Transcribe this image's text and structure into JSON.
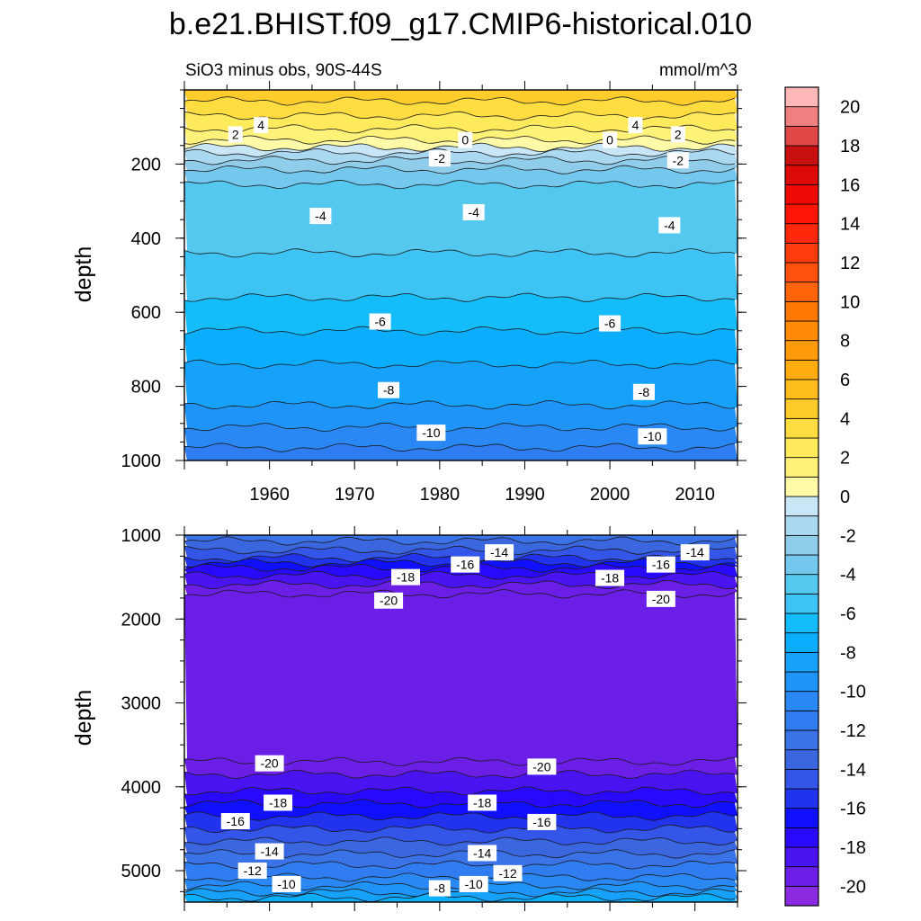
{
  "title": "b.e21.BHIST.f09_g17.CMIP6-historical.010",
  "subtitle_left": "SiO3 minus obs, 90S-44S",
  "subtitle_right": "mmol/m^3",
  "colors": {
    "levels": [
      -21,
      -20,
      -19,
      -18,
      -17,
      -16,
      -15,
      -14,
      -13,
      -12,
      -11,
      -10,
      -9,
      -8,
      -7,
      -6,
      -5,
      -4,
      -3,
      -2,
      -1,
      0,
      1,
      2,
      3,
      4,
      5,
      6,
      7,
      8,
      9,
      10,
      11,
      12,
      13,
      14,
      15,
      16,
      17,
      18,
      19,
      20,
      21
    ],
    "fill": [
      "#8a2be2",
      "#6a1ee6",
      "#4a14f2",
      "#2a0aff",
      "#1010ff",
      "#2233ee",
      "#3355e8",
      "#3a66e0",
      "#3a72e8",
      "#2f7df0",
      "#2a88f5",
      "#1f94f8",
      "#16a2fb",
      "#0aaefc",
      "#14bcfa",
      "#3dc4f4",
      "#55c8f0",
      "#74c8ee",
      "#90cdeb",
      "#a9d8f0",
      "#c8e6f5",
      "#fffaa8",
      "#fff278",
      "#ffea5c",
      "#ffdc40",
      "#ffcc2c",
      "#ffbc1c",
      "#ffac10",
      "#ff9a0a",
      "#ff8a06",
      "#ff7806",
      "#ff640a",
      "#ff500e",
      "#ff3c0e",
      "#ff280a",
      "#ff1406",
      "#f00a06",
      "#dd0a0a",
      "#c81010",
      "#e04848",
      "#f08080",
      "#ffb8b8"
    ]
  },
  "colorbar": {
    "tick_labels": [
      "20",
      "18",
      "16",
      "14",
      "12",
      "10",
      "8",
      "6",
      "4",
      "2",
      "0",
      "-2",
      "-4",
      "-6",
      "-8",
      "-10",
      "-12",
      "-14",
      "-16",
      "-18",
      "-20"
    ]
  },
  "chart_data": [
    {
      "type": "contour",
      "panel": "upper",
      "ylabel": "depth",
      "xlabel": "",
      "xlim": [
        1950,
        2015
      ],
      "ylim": [
        1000,
        0
      ],
      "x_ticks": [
        "1960",
        "1970",
        "1980",
        "1990",
        "2000",
        "2010"
      ],
      "y_ticks": [
        "200",
        "400",
        "600",
        "800",
        "1000"
      ],
      "contour_levels": [
        4,
        3,
        2,
        1,
        0,
        -1,
        -2,
        -3,
        -4,
        -5,
        -6,
        -7,
        -8,
        -9,
        -10,
        -11
      ],
      "contour_depths": [
        30,
        70,
        105,
        135,
        155,
        170,
        190,
        215,
        255,
        440,
        560,
        650,
        740,
        850,
        910,
        965
      ],
      "contour_labels": [
        {
          "text": "4",
          "x": 1959,
          "y": 95
        },
        {
          "text": "2",
          "x": 1956,
          "y": 120
        },
        {
          "text": "0",
          "x": 1983,
          "y": 135
        },
        {
          "text": "-2",
          "x": 1980,
          "y": 185
        },
        {
          "text": "-4",
          "x": 1966,
          "y": 340
        },
        {
          "text": "-4",
          "x": 1984,
          "y": 330
        },
        {
          "text": "-4",
          "x": 2007,
          "y": 365
        },
        {
          "text": "4",
          "x": 2003,
          "y": 95
        },
        {
          "text": "2",
          "x": 2008,
          "y": 120
        },
        {
          "text": "0",
          "x": 2000,
          "y": 135
        },
        {
          "text": "-2",
          "x": 2008,
          "y": 190
        },
        {
          "text": "-6",
          "x": 1973,
          "y": 625
        },
        {
          "text": "-6",
          "x": 2000,
          "y": 630
        },
        {
          "text": "-8",
          "x": 1974,
          "y": 810
        },
        {
          "text": "-8",
          "x": 2004,
          "y": 815
        },
        {
          "text": "-10",
          "x": 1979,
          "y": 925
        },
        {
          "text": "-10",
          "x": 2005,
          "y": 935
        }
      ]
    },
    {
      "type": "contour",
      "panel": "lower",
      "ylabel": "depth",
      "xlabel": "",
      "xlim": [
        1950,
        2015
      ],
      "ylim": [
        5375,
        1000
      ],
      "x_ticks": [],
      "y_ticks": [
        "1000",
        "2000",
        "3000",
        "4000",
        "5000"
      ],
      "contour_levels": [
        -13,
        -14,
        -15,
        -16,
        -17,
        -18,
        -19,
        -20,
        -20,
        -19,
        -18,
        -17,
        -16,
        -15,
        -14,
        -13,
        -12,
        -11,
        -10,
        -9,
        -8
      ],
      "contour_depths": [
        1070,
        1180,
        1270,
        1330,
        1390,
        1480,
        1590,
        1700,
        3700,
        3850,
        4050,
        4200,
        4350,
        4500,
        4650,
        4800,
        4930,
        5080,
        5180,
        5260,
        5320
      ],
      "contour_labels": [
        {
          "text": "-14",
          "x": 1987,
          "y": 1205
        },
        {
          "text": "-16",
          "x": 1983,
          "y": 1350
        },
        {
          "text": "-18",
          "x": 1976,
          "y": 1500
        },
        {
          "text": "-20",
          "x": 1974,
          "y": 1780
        },
        {
          "text": "-18",
          "x": 2000,
          "y": 1510
        },
        {
          "text": "-16",
          "x": 2006,
          "y": 1350
        },
        {
          "text": "-14",
          "x": 2010,
          "y": 1205
        },
        {
          "text": "-20",
          "x": 2006,
          "y": 1760
        },
        {
          "text": "-20",
          "x": 1960,
          "y": 3720
        },
        {
          "text": "-20",
          "x": 1992,
          "y": 3760
        },
        {
          "text": "-18",
          "x": 1961,
          "y": 4190
        },
        {
          "text": "-18",
          "x": 1985,
          "y": 4190
        },
        {
          "text": "-16",
          "x": 1956,
          "y": 4410
        },
        {
          "text": "-16",
          "x": 1992,
          "y": 4420
        },
        {
          "text": "-14",
          "x": 1960,
          "y": 4770
        },
        {
          "text": "-14",
          "x": 1985,
          "y": 4790
        },
        {
          "text": "-12",
          "x": 1958,
          "y": 5000
        },
        {
          "text": "-12",
          "x": 1988,
          "y": 5030
        },
        {
          "text": "-10",
          "x": 1962,
          "y": 5160
        },
        {
          "text": "-10",
          "x": 1984,
          "y": 5160
        },
        {
          "text": "-8",
          "x": 1980,
          "y": 5210
        }
      ]
    }
  ]
}
